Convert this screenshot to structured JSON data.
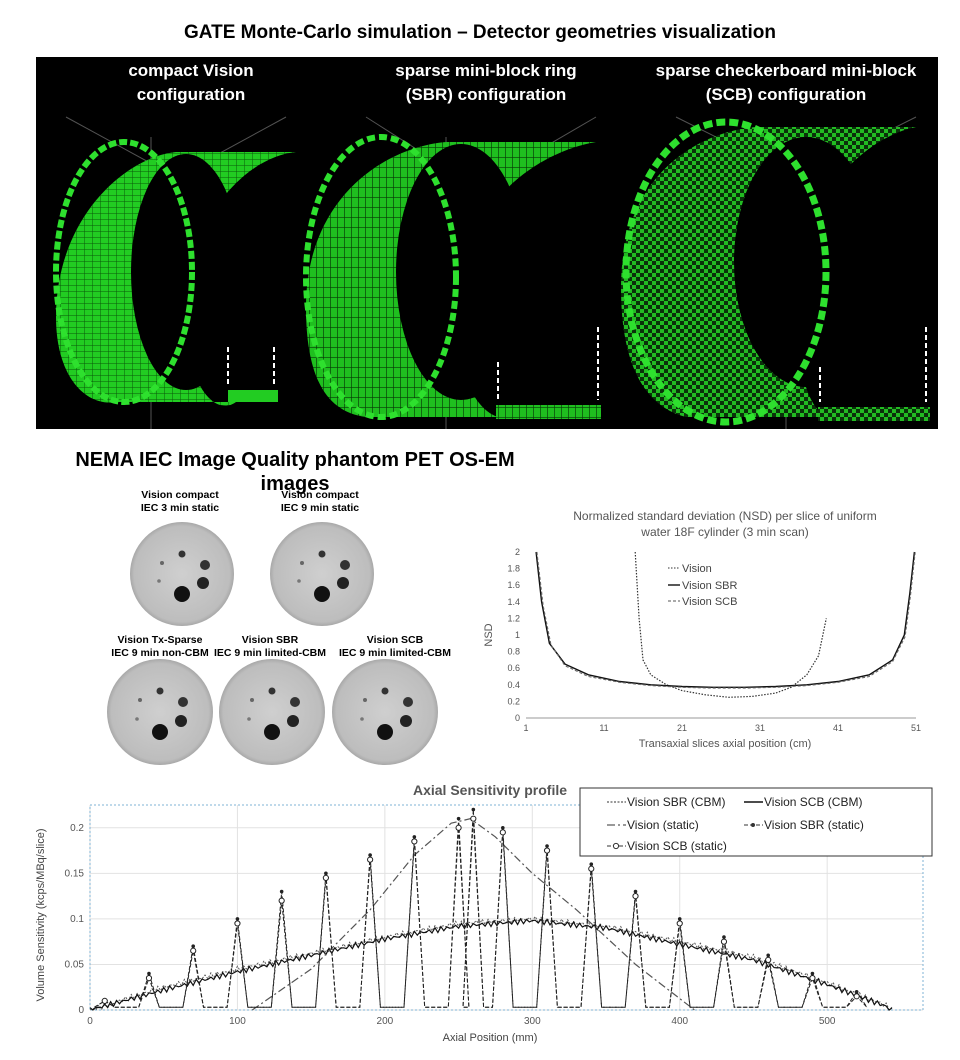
{
  "figure": {
    "title": "GATE Monte-Carlo simulation – Detector geometries visualization",
    "geometries": [
      {
        "label_line1": "compact Vision",
        "label_line2": "configuration"
      },
      {
        "label_line1": "sparse mini-block ring",
        "label_line2": "(SBR) configuration"
      },
      {
        "label_line1": "sparse checkerboard mini-block",
        "label_line2": "(SCB) configuration"
      }
    ],
    "section2_title": "NEMA IEC Image Quality phantom PET OS-EM images",
    "phantoms": [
      {
        "line1": "Vision compact",
        "line2": "IEC 3 min static"
      },
      {
        "line1": "Vision compact",
        "line2": "IEC 9 min static"
      },
      {
        "line1": "Vision Tx-Sparse",
        "line2": "IEC 9 min non-CBM"
      },
      {
        "line1": "Vision SBR",
        "line2": "IEC 9 min limited-CBM"
      },
      {
        "line1": "Vision SCB",
        "line2": "IEC 9 min limited-CBM"
      }
    ],
    "colors": {
      "detector_green": "#22dd22",
      "panel_bg": "#000000"
    }
  },
  "chart_data": [
    {
      "type": "line",
      "title": "Normalized standard deviation (NSD) per slice of uniform water 18F cylinder (3 min scan)",
      "title_line1": "Normalized standard deviation (NSD) per slice of uniform",
      "title_line2": "water 18F cylinder (3 min scan)",
      "xlabel": "Transaxial slices axial position (cm)",
      "ylabel": "NSD",
      "xlim": [
        1,
        51
      ],
      "ylim": [
        0,
        2
      ],
      "xticks": [
        "1",
        "11",
        "21",
        "31",
        "41",
        "51"
      ],
      "yticks": [
        "0",
        "0.2",
        "0.4",
        "0.6",
        "0.8",
        "1",
        "1.2",
        "1.4",
        "1.6",
        "1.8",
        "2"
      ],
      "series": [
        {
          "name": "Vision",
          "style": "dotted",
          "x": [
            15,
            15.5,
            16,
            17,
            19,
            21,
            24,
            27,
            30,
            33,
            35,
            37,
            38.5,
            39.5
          ],
          "y": [
            2.0,
            1.2,
            0.7,
            0.52,
            0.4,
            0.33,
            0.28,
            0.25,
            0.26,
            0.3,
            0.37,
            0.52,
            0.75,
            1.2
          ]
        },
        {
          "name": "Vision SBR",
          "style": "solid",
          "x": [
            2.3,
            3,
            4,
            6,
            9,
            13,
            17,
            21,
            25,
            29,
            33,
            37,
            41,
            45,
            48,
            49.5,
            50.2,
            50.8
          ],
          "y": [
            2.0,
            1.4,
            0.9,
            0.65,
            0.52,
            0.44,
            0.4,
            0.38,
            0.37,
            0.37,
            0.38,
            0.4,
            0.44,
            0.52,
            0.7,
            1.0,
            1.5,
            2.0
          ]
        },
        {
          "name": "Vision SCB",
          "style": "dashed",
          "x": [
            2.4,
            3.2,
            4.2,
            6,
            9,
            13,
            17,
            21,
            25,
            29,
            33,
            37,
            41,
            45,
            48,
            49.6,
            50.3,
            50.9
          ],
          "y": [
            2.0,
            1.35,
            0.88,
            0.63,
            0.5,
            0.43,
            0.39,
            0.37,
            0.36,
            0.36,
            0.37,
            0.39,
            0.43,
            0.5,
            0.68,
            0.98,
            1.48,
            2.0
          ]
        }
      ]
    },
    {
      "type": "line",
      "title": "Axial Sensitivity profile",
      "xlabel": "Axial Position (mm)",
      "ylabel": "Volume Sensitivity (kcps/MBq/slice)",
      "xlim": [
        0,
        565
      ],
      "ylim": [
        0,
        0.225
      ],
      "xticks": [
        "0",
        "100",
        "200",
        "300",
        "400",
        "500"
      ],
      "yticks": [
        "0",
        "0.05",
        "0.1",
        "0.15",
        "0.2"
      ],
      "series": [
        {
          "name": "Vision SBR (CBM)",
          "style": "dotted",
          "x": [
            0,
            50,
            100,
            150,
            200,
            250,
            300,
            350,
            400,
            450,
            500,
            540
          ],
          "y": [
            0,
            0.025,
            0.045,
            0.062,
            0.08,
            0.095,
            0.1,
            0.092,
            0.075,
            0.058,
            0.03,
            0.005
          ]
        },
        {
          "name": "Vision SCB (CBM)",
          "style": "solid",
          "x": [
            0,
            50,
            100,
            150,
            200,
            250,
            300,
            350,
            400,
            450,
            500,
            540
          ],
          "y": [
            0,
            0.022,
            0.042,
            0.06,
            0.078,
            0.092,
            0.098,
            0.09,
            0.072,
            0.055,
            0.028,
            0.004
          ]
        },
        {
          "name": "Vision (static)",
          "style": "dashdot",
          "x": [
            110,
            150,
            190,
            220,
            245,
            258,
            275,
            300,
            330,
            370,
            410
          ],
          "y": [
            0,
            0.045,
            0.11,
            0.17,
            0.205,
            0.21,
            0.19,
            0.15,
            0.11,
            0.05,
            0
          ]
        },
        {
          "name": "Vision SBR (static)",
          "style": "dash-marker",
          "x": [
            10,
            40,
            70,
            100,
            130,
            160,
            190,
            220,
            250,
            260,
            280,
            310,
            340,
            370,
            400,
            430,
            460,
            490,
            520
          ],
          "y": [
            0.01,
            0.04,
            0.07,
            0.1,
            0.13,
            0.15,
            0.17,
            0.19,
            0.21,
            0.22,
            0.2,
            0.18,
            0.16,
            0.13,
            0.1,
            0.08,
            0.06,
            0.04,
            0.02
          ]
        },
        {
          "name": "Vision SCB (static)",
          "style": "circle-marker",
          "x": [
            10,
            40,
            70,
            100,
            130,
            160,
            190,
            220,
            250,
            260,
            280,
            310,
            340,
            370,
            400,
            430,
            460,
            490,
            520
          ],
          "y": [
            0.01,
            0.035,
            0.065,
            0.095,
            0.12,
            0.145,
            0.165,
            0.185,
            0.2,
            0.21,
            0.195,
            0.175,
            0.155,
            0.125,
            0.095,
            0.075,
            0.055,
            0.035,
            0.015
          ]
        }
      ]
    }
  ]
}
